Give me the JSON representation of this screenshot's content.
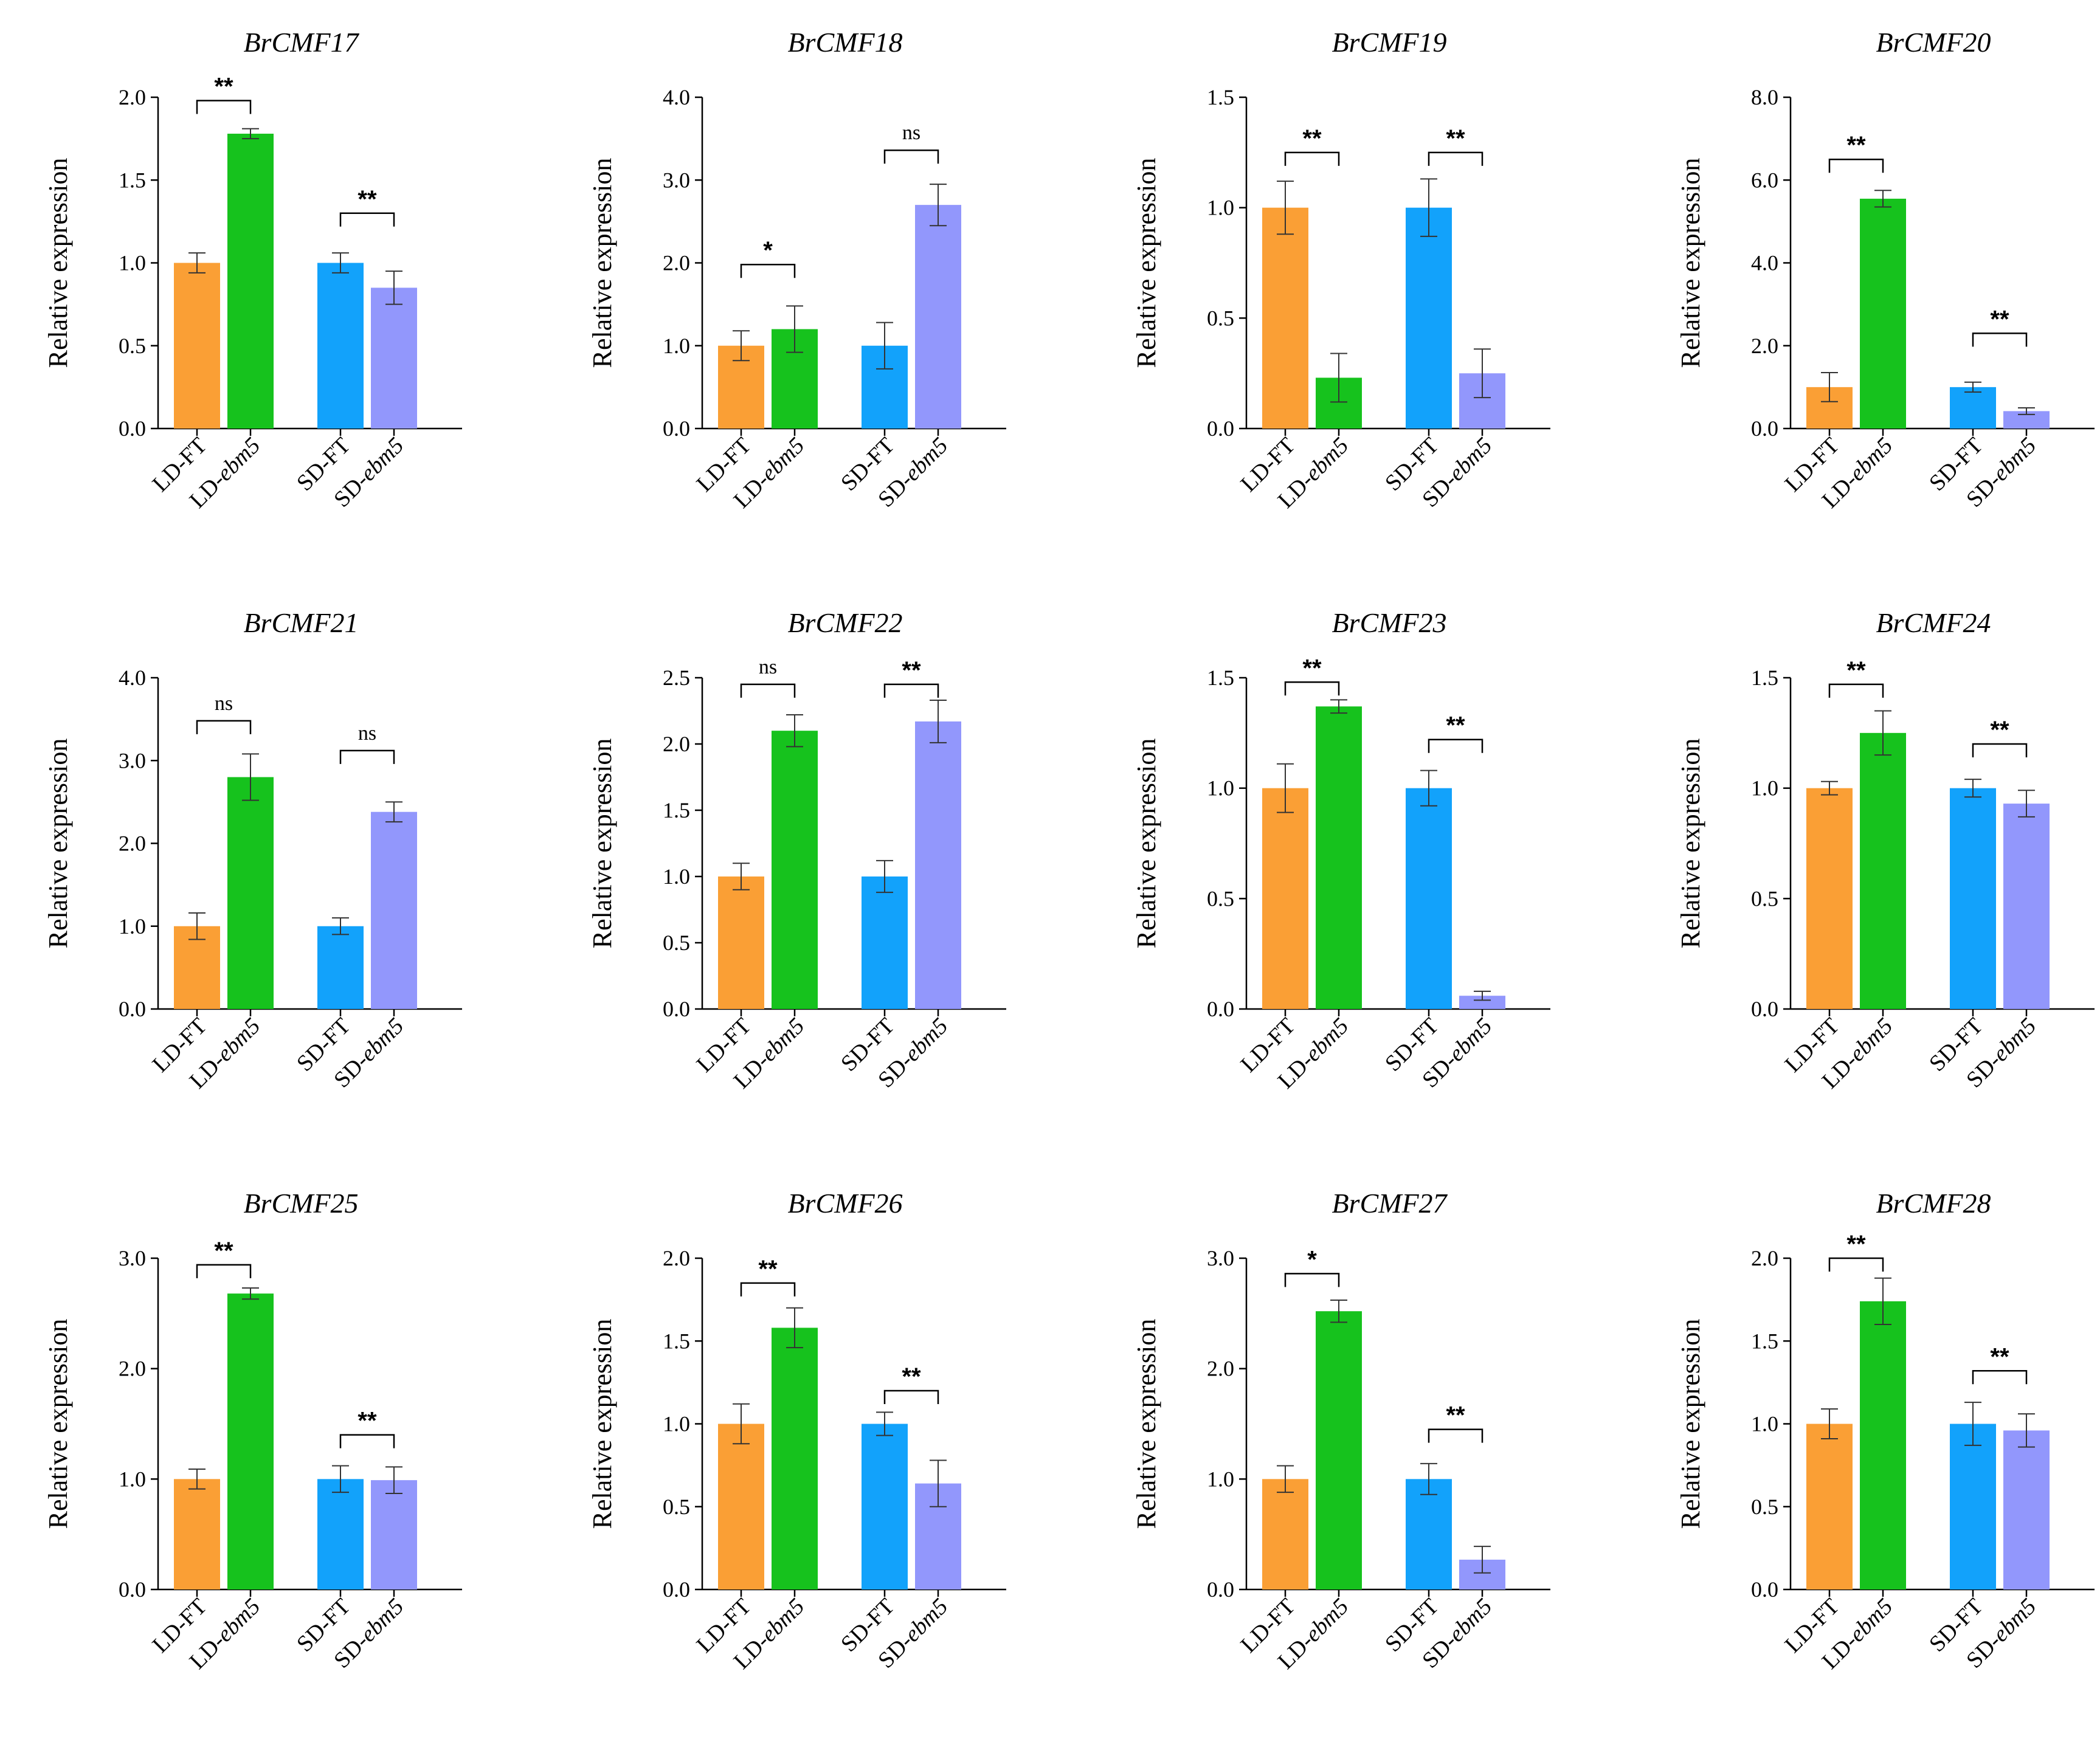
{
  "figure": {
    "background": "#ffffff"
  },
  "colors": {
    "LD-FT": "#fa9f35",
    "LD-ebm5": "#16c21d",
    "SD-FT": "#12a2fb",
    "SD-ebm5": "#9297fc",
    "axis": "#000000",
    "errorbar": "#333333"
  },
  "chart_data": [
    {
      "type": "bar",
      "title": "BrCMF17",
      "ylabel": "Relative expression",
      "ylim": [
        0,
        2.0
      ],
      "yticks": [
        "0.0",
        "0.5",
        "1.0",
        "1.5",
        "2.0"
      ],
      "categories": [
        "LD-FT",
        "LD-ebm5",
        "SD-FT",
        "SD-ebm5"
      ],
      "category_labels": [
        [
          "LD-FT",
          ""
        ],
        [
          "LD-",
          "ebm5"
        ],
        [
          "SD-FT",
          ""
        ],
        [
          "SD-",
          "ebm5"
        ]
      ],
      "values": [
        1.0,
        1.78,
        1.0,
        0.85
      ],
      "errors": [
        0.06,
        0.03,
        0.06,
        0.1
      ],
      "significance": [
        {
          "pair": [
            0,
            1
          ],
          "label": "**",
          "y": 1.98
        },
        {
          "pair": [
            2,
            3
          ],
          "label": "**",
          "y": 1.3
        }
      ]
    },
    {
      "type": "bar",
      "title": "BrCMF18",
      "ylabel": "Relative expression",
      "ylim": [
        0,
        4.0
      ],
      "yticks": [
        "0.0",
        "1.0",
        "2.0",
        "3.0",
        "4.0"
      ],
      "categories": [
        "LD-FT",
        "LD-ebm5",
        "SD-FT",
        "SD-ebm5"
      ],
      "category_labels": [
        [
          "LD-FT",
          ""
        ],
        [
          "LD-",
          "ebm5"
        ],
        [
          "SD-FT",
          ""
        ],
        [
          "SD-",
          "ebm5"
        ]
      ],
      "values": [
        1.0,
        1.2,
        1.0,
        2.7
      ],
      "errors": [
        0.18,
        0.28,
        0.28,
        0.25
      ],
      "significance": [
        {
          "pair": [
            0,
            1
          ],
          "label": "*",
          "y": 1.98
        },
        {
          "pair": [
            2,
            3
          ],
          "label": "ns",
          "y": 3.36
        }
      ]
    },
    {
      "type": "bar",
      "title": "BrCMF19",
      "ylabel": "Relative expression",
      "ylim": [
        0,
        1.5
      ],
      "yticks": [
        "0.0",
        "0.5",
        "1.0",
        "1.5"
      ],
      "categories": [
        "LD-FT",
        "LD-ebm5",
        "SD-FT",
        "SD-ebm5"
      ],
      "category_labels": [
        [
          "LD-FT",
          ""
        ],
        [
          "LD-",
          "ebm5"
        ],
        [
          "SD-FT",
          ""
        ],
        [
          "SD-",
          "ebm5"
        ]
      ],
      "values": [
        1.0,
        0.23,
        1.0,
        0.25
      ],
      "errors": [
        0.12,
        0.11,
        0.13,
        0.11
      ],
      "significance": [
        {
          "pair": [
            0,
            1
          ],
          "label": "**",
          "y": 1.25
        },
        {
          "pair": [
            2,
            3
          ],
          "label": "**",
          "y": 1.25
        }
      ]
    },
    {
      "type": "bar",
      "title": "BrCMF20",
      "ylabel": "Relative expression",
      "ylim": [
        0,
        8.0
      ],
      "yticks": [
        "0.0",
        "2.0",
        "4.0",
        "6.0",
        "8.0"
      ],
      "categories": [
        "LD-FT",
        "LD-ebm5",
        "SD-FT",
        "SD-ebm5"
      ],
      "category_labels": [
        [
          "LD-FT",
          ""
        ],
        [
          "LD-",
          "ebm5"
        ],
        [
          "SD-FT",
          ""
        ],
        [
          "SD-",
          "ebm5"
        ]
      ],
      "values": [
        1.0,
        5.55,
        1.0,
        0.42
      ],
      "errors": [
        0.35,
        0.2,
        0.12,
        0.08
      ],
      "significance": [
        {
          "pair": [
            0,
            1
          ],
          "label": "**",
          "y": 6.5
        },
        {
          "pair": [
            2,
            3
          ],
          "label": "**",
          "y": 2.3
        }
      ]
    },
    {
      "type": "bar",
      "title": "BrCMF21",
      "ylabel": "Relative expression",
      "ylim": [
        0,
        4.0
      ],
      "yticks": [
        "0.0",
        "1.0",
        "2.0",
        "3.0",
        "4.0"
      ],
      "categories": [
        "LD-FT",
        "LD-ebm5",
        "SD-FT",
        "SD-ebm5"
      ],
      "category_labels": [
        [
          "LD-FT",
          ""
        ],
        [
          "LD-",
          "ebm5"
        ],
        [
          "SD-FT",
          ""
        ],
        [
          "SD-",
          "ebm5"
        ]
      ],
      "values": [
        1.0,
        2.8,
        1.0,
        2.38
      ],
      "errors": [
        0.16,
        0.28,
        0.1,
        0.12
      ],
      "significance": [
        {
          "pair": [
            0,
            1
          ],
          "label": "ns",
          "y": 3.48
        },
        {
          "pair": [
            2,
            3
          ],
          "label": "ns",
          "y": 3.12
        }
      ]
    },
    {
      "type": "bar",
      "title": "BrCMF22",
      "ylabel": "Relative expression",
      "ylim": [
        0,
        2.5
      ],
      "yticks": [
        "0.0",
        "0.5",
        "1.0",
        "1.5",
        "2.0",
        "2.5"
      ],
      "categories": [
        "LD-FT",
        "LD-ebm5",
        "SD-FT",
        "SD-ebm5"
      ],
      "category_labels": [
        [
          "LD-FT",
          ""
        ],
        [
          "LD-",
          "ebm5"
        ],
        [
          "SD-FT",
          ""
        ],
        [
          "SD-",
          "ebm5"
        ]
      ],
      "values": [
        1.0,
        2.1,
        1.0,
        2.17
      ],
      "errors": [
        0.1,
        0.12,
        0.12,
        0.16
      ],
      "significance": [
        {
          "pair": [
            0,
            1
          ],
          "label": "ns",
          "y": 2.45
        },
        {
          "pair": [
            2,
            3
          ],
          "label": "**",
          "y": 2.45
        }
      ]
    },
    {
      "type": "bar",
      "title": "BrCMF23",
      "ylabel": "Relative expression",
      "ylim": [
        0,
        1.5
      ],
      "yticks": [
        "0.0",
        "0.5",
        "1.0",
        "1.5"
      ],
      "categories": [
        "LD-FT",
        "LD-ebm5",
        "SD-FT",
        "SD-ebm5"
      ],
      "category_labels": [
        [
          "LD-FT",
          ""
        ],
        [
          "LD-",
          "ebm5"
        ],
        [
          "SD-FT",
          ""
        ],
        [
          "SD-",
          "ebm5"
        ]
      ],
      "values": [
        1.0,
        1.37,
        1.0,
        0.06
      ],
      "errors": [
        0.11,
        0.03,
        0.08,
        0.02
      ],
      "significance": [
        {
          "pair": [
            0,
            1
          ],
          "label": "**",
          "y": 1.48
        },
        {
          "pair": [
            2,
            3
          ],
          "label": "**",
          "y": 1.22
        }
      ]
    },
    {
      "type": "bar",
      "title": "BrCMF24",
      "ylabel": "Relative expression",
      "ylim": [
        0,
        1.5
      ],
      "yticks": [
        "0.0",
        "0.5",
        "1.0",
        "1.5"
      ],
      "categories": [
        "LD-FT",
        "LD-ebm5",
        "SD-FT",
        "SD-ebm5"
      ],
      "category_labels": [
        [
          "LD-FT",
          ""
        ],
        [
          "LD-",
          "ebm5"
        ],
        [
          "SD-FT",
          ""
        ],
        [
          "SD-",
          "ebm5"
        ]
      ],
      "values": [
        1.0,
        1.25,
        1.0,
        0.93
      ],
      "errors": [
        0.03,
        0.1,
        0.04,
        0.06
      ],
      "significance": [
        {
          "pair": [
            0,
            1
          ],
          "label": "**",
          "y": 1.47
        },
        {
          "pair": [
            2,
            3
          ],
          "label": "**",
          "y": 1.2
        }
      ]
    },
    {
      "type": "bar",
      "title": "BrCMF25",
      "ylabel": "Relative expression",
      "ylim": [
        0,
        3.0
      ],
      "yticks": [
        "0.0",
        "1.0",
        "2.0",
        "3.0"
      ],
      "categories": [
        "LD-FT",
        "LD-ebm5",
        "SD-FT",
        "SD-ebm5"
      ],
      "category_labels": [
        [
          "LD-FT",
          ""
        ],
        [
          "LD-",
          "ebm5"
        ],
        [
          "SD-FT",
          ""
        ],
        [
          "SD-",
          "ebm5"
        ]
      ],
      "values": [
        1.0,
        2.68,
        1.0,
        0.99
      ],
      "errors": [
        0.09,
        0.05,
        0.12,
        0.12
      ],
      "significance": [
        {
          "pair": [
            0,
            1
          ],
          "label": "**",
          "y": 2.94
        },
        {
          "pair": [
            2,
            3
          ],
          "label": "**",
          "y": 1.4
        }
      ]
    },
    {
      "type": "bar",
      "title": "BrCMF26",
      "ylabel": "Relative expression",
      "ylim": [
        0,
        2.0
      ],
      "yticks": [
        "0.0",
        "0.5",
        "1.0",
        "1.5",
        "2.0"
      ],
      "categories": [
        "LD-FT",
        "LD-ebm5",
        "SD-FT",
        "SD-ebm5"
      ],
      "category_labels": [
        [
          "LD-FT",
          ""
        ],
        [
          "LD-",
          "ebm5"
        ],
        [
          "SD-FT",
          ""
        ],
        [
          "SD-",
          "ebm5"
        ]
      ],
      "values": [
        1.0,
        1.58,
        1.0,
        0.64
      ],
      "errors": [
        0.12,
        0.12,
        0.07,
        0.14
      ],
      "significance": [
        {
          "pair": [
            0,
            1
          ],
          "label": "**",
          "y": 1.85
        },
        {
          "pair": [
            2,
            3
          ],
          "label": "**",
          "y": 1.2
        }
      ]
    },
    {
      "type": "bar",
      "title": "BrCMF27",
      "ylabel": "Relative expression",
      "ylim": [
        0,
        3.0
      ],
      "yticks": [
        "0.0",
        "1.0",
        "2.0",
        "3.0"
      ],
      "categories": [
        "LD-FT",
        "LD-ebm5",
        "SD-FT",
        "SD-ebm5"
      ],
      "category_labels": [
        [
          "LD-FT",
          ""
        ],
        [
          "LD-",
          "ebm5"
        ],
        [
          "SD-FT",
          ""
        ],
        [
          "SD-",
          "ebm5"
        ]
      ],
      "values": [
        1.0,
        2.52,
        1.0,
        0.27
      ],
      "errors": [
        0.12,
        0.1,
        0.14,
        0.12
      ],
      "significance": [
        {
          "pair": [
            0,
            1
          ],
          "label": "*",
          "y": 2.86
        },
        {
          "pair": [
            2,
            3
          ],
          "label": "**",
          "y": 1.45
        }
      ]
    },
    {
      "type": "bar",
      "title": "BrCMF28",
      "ylabel": "Relative expression",
      "ylim": [
        0,
        2.0
      ],
      "yticks": [
        "0.0",
        "0.5",
        "1.0",
        "1.5",
        "2.0"
      ],
      "categories": [
        "LD-FT",
        "LD-ebm5",
        "SD-FT",
        "SD-ebm5"
      ],
      "category_labels": [
        [
          "LD-FT",
          ""
        ],
        [
          "LD-",
          "ebm5"
        ],
        [
          "SD-FT",
          ""
        ],
        [
          "SD-",
          "ebm5"
        ]
      ],
      "values": [
        1.0,
        1.74,
        1.0,
        0.96
      ],
      "errors": [
        0.09,
        0.14,
        0.13,
        0.1
      ],
      "significance": [
        {
          "pair": [
            0,
            1
          ],
          "label": "**",
          "y": 2.0
        },
        {
          "pair": [
            2,
            3
          ],
          "label": "**",
          "y": 1.32
        }
      ]
    }
  ]
}
